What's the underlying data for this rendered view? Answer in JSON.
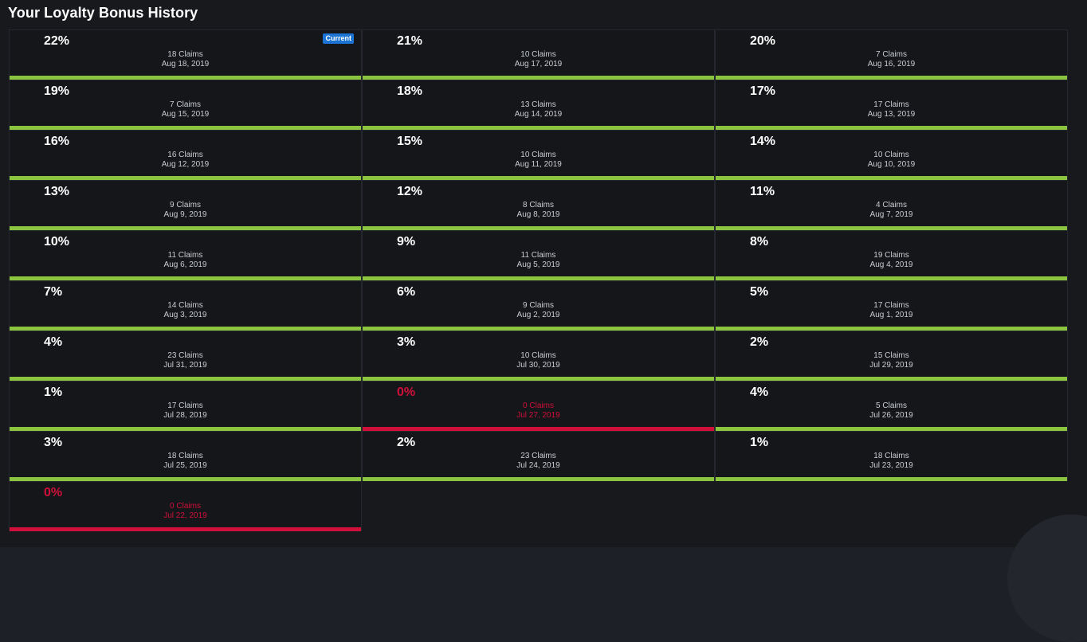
{
  "title": "Your Loyalty Bonus History",
  "current_badge": "Current",
  "colors": {
    "positive_bar": "#8bc43f",
    "zero_highlight": "#d0103a",
    "badge": "#1b74d4"
  },
  "entries": [
    {
      "percent": "22%",
      "claims": "18 Claims",
      "date": "Aug 18, 2019",
      "current": true
    },
    {
      "percent": "21%",
      "claims": "10 Claims",
      "date": "Aug 17, 2019"
    },
    {
      "percent": "20%",
      "claims": "7 Claims",
      "date": "Aug 16, 2019"
    },
    {
      "percent": "19%",
      "claims": "7 Claims",
      "date": "Aug 15, 2019"
    },
    {
      "percent": "18%",
      "claims": "13 Claims",
      "date": "Aug 14, 2019"
    },
    {
      "percent": "17%",
      "claims": "17 Claims",
      "date": "Aug 13, 2019"
    },
    {
      "percent": "16%",
      "claims": "16 Claims",
      "date": "Aug 12, 2019"
    },
    {
      "percent": "15%",
      "claims": "10 Claims",
      "date": "Aug 11, 2019"
    },
    {
      "percent": "14%",
      "claims": "10 Claims",
      "date": "Aug 10, 2019"
    },
    {
      "percent": "13%",
      "claims": "9 Claims",
      "date": "Aug 9, 2019"
    },
    {
      "percent": "12%",
      "claims": "8 Claims",
      "date": "Aug 8, 2019"
    },
    {
      "percent": "11%",
      "claims": "4 Claims",
      "date": "Aug 7, 2019"
    },
    {
      "percent": "10%",
      "claims": "11 Claims",
      "date": "Aug 6, 2019"
    },
    {
      "percent": "9%",
      "claims": "11 Claims",
      "date": "Aug 5, 2019"
    },
    {
      "percent": "8%",
      "claims": "19 Claims",
      "date": "Aug 4, 2019"
    },
    {
      "percent": "7%",
      "claims": "14 Claims",
      "date": "Aug 3, 2019"
    },
    {
      "percent": "6%",
      "claims": "9 Claims",
      "date": "Aug 2, 2019"
    },
    {
      "percent": "5%",
      "claims": "17 Claims",
      "date": "Aug 1, 2019"
    },
    {
      "percent": "4%",
      "claims": "23 Claims",
      "date": "Jul 31, 2019"
    },
    {
      "percent": "3%",
      "claims": "10 Claims",
      "date": "Jul 30, 2019"
    },
    {
      "percent": "2%",
      "claims": "15 Claims",
      "date": "Jul 29, 2019"
    },
    {
      "percent": "1%",
      "claims": "17 Claims",
      "date": "Jul 28, 2019"
    },
    {
      "percent": "0%",
      "claims": "0 Claims",
      "date": "Jul 27, 2019",
      "zero": true
    },
    {
      "percent": "4%",
      "claims": "5 Claims",
      "date": "Jul 26, 2019"
    },
    {
      "percent": "3%",
      "claims": "18 Claims",
      "date": "Jul 25, 2019"
    },
    {
      "percent": "2%",
      "claims": "23 Claims",
      "date": "Jul 24, 2019"
    },
    {
      "percent": "1%",
      "claims": "18 Claims",
      "date": "Jul 23, 2019"
    },
    {
      "percent": "0%",
      "claims": "0 Claims",
      "date": "Jul 22, 2019",
      "zero": true
    }
  ]
}
